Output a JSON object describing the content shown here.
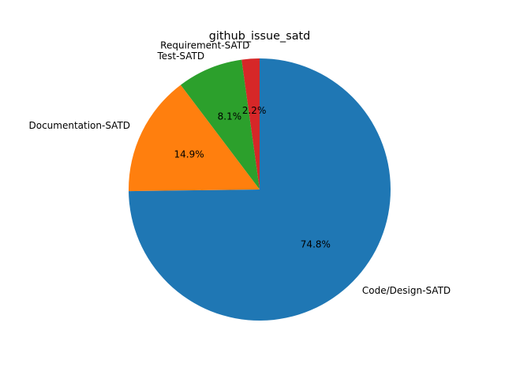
{
  "chart_data": {
    "type": "pie",
    "title": "github_issue_satd",
    "start_angle_deg": 90,
    "direction": "counterclockwise",
    "slices": [
      {
        "label": "Requirement-SATD",
        "value": 2.2,
        "pct_label": "2.2%",
        "color": "#d62728"
      },
      {
        "label": "Test-SATD",
        "value": 8.1,
        "pct_label": "8.1%",
        "color": "#2ca02c"
      },
      {
        "label": "Documentation-SATD",
        "value": 14.9,
        "pct_label": "14.9%",
        "color": "#ff7f0e"
      },
      {
        "label": "Code/Design-SATD",
        "value": 74.8,
        "pct_label": "74.8%",
        "color": "#1f77b4"
      }
    ]
  }
}
